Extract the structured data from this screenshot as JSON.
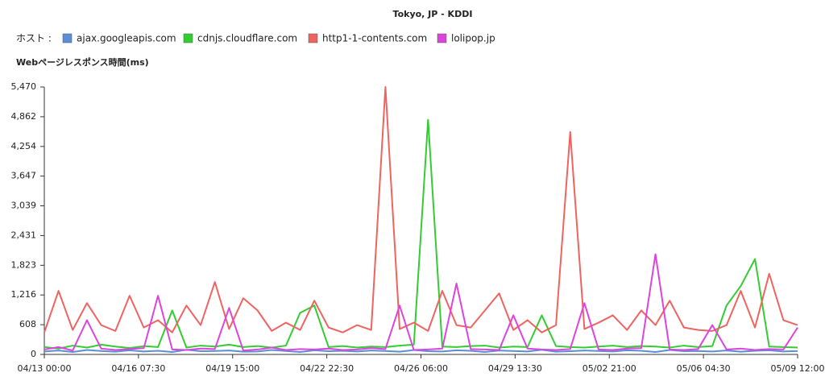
{
  "chart_data": {
    "type": "line",
    "title": "Tokyo, JP - KDDI",
    "legend_title": "ホスト :",
    "ylabel": "Webページレスポンス時間(ms)",
    "grid": false,
    "ylim": [
      0,
      5470
    ],
    "yticks": [
      0,
      608,
      {
        "value": 1216,
        "label": "1,216"
      },
      {
        "value": 1823,
        "label": "1,823"
      },
      {
        "value": 2431,
        "label": "2,431"
      },
      {
        "value": 3039,
        "label": "3,039"
      },
      {
        "value": 3647,
        "label": "3,647"
      },
      {
        "value": 4254,
        "label": "4,254"
      },
      {
        "value": 4862,
        "label": "4,862"
      },
      {
        "value": 5470,
        "label": "5,470"
      }
    ],
    "xlim": [
      "04/13 00:00",
      "05/09 12:00"
    ],
    "xticks": [
      "04/13 00:00",
      "04/16 07:30",
      "04/19 15:00",
      "04/22 22:30",
      "04/26 06:00",
      "04/29 13:30",
      "05/02 21:00",
      "05/06 04:30",
      "05/09 12:00"
    ],
    "x": [
      "04/13 00:00",
      "04/13 12:00",
      "04/14 00:00",
      "04/14 12:00",
      "04/15 00:00",
      "04/15 12:00",
      "04/16 00:00",
      "04/16 12:00",
      "04/17 00:00",
      "04/17 12:00",
      "04/18 00:00",
      "04/18 12:00",
      "04/19 00:00",
      "04/19 12:00",
      "04/20 00:00",
      "04/20 12:00",
      "04/21 00:00",
      "04/21 12:00",
      "04/22 00:00",
      "04/22 12:00",
      "04/23 00:00",
      "04/23 12:00",
      "04/24 00:00",
      "04/24 12:00",
      "04/25 00:00",
      "04/25 12:00",
      "04/26 00:00",
      "04/26 12:00",
      "04/27 00:00",
      "04/27 12:00",
      "04/28 00:00",
      "04/28 12:00",
      "04/29 00:00",
      "04/29 12:00",
      "04/30 00:00",
      "04/30 12:00",
      "05/01 00:00",
      "05/01 12:00",
      "05/02 00:00",
      "05/02 12:00",
      "05/03 00:00",
      "05/03 12:00",
      "05/04 00:00",
      "05/04 12:00",
      "05/05 00:00",
      "05/05 12:00",
      "05/06 00:00",
      "05/06 12:00",
      "05/07 00:00",
      "05/07 12:00",
      "05/08 00:00",
      "05/08 12:00",
      "05/09 00:00",
      "05/09 12:00"
    ],
    "series": [
      {
        "name": "ajax.googleapis.com",
        "color": "#5b8ed6",
        "values": [
          60,
          80,
          50,
          90,
          70,
          55,
          85,
          60,
          75,
          50,
          95,
          65,
          70,
          80,
          55,
          60,
          90,
          70,
          50,
          85,
          65,
          75,
          60,
          80,
          70,
          55,
          90,
          65,
          60,
          85,
          75,
          50,
          80,
          70,
          60,
          95,
          55,
          65,
          80,
          70,
          60,
          85,
          75,
          50,
          90,
          65,
          70,
          60,
          80,
          55,
          75,
          85,
          60,
          70
        ]
      },
      {
        "name": "cdnjs.cloudflare.com",
        "color": "#33cc33",
        "values": [
          150,
          120,
          180,
          140,
          200,
          160,
          130,
          170,
          150,
          900,
          140,
          180,
          160,
          200,
          150,
          170,
          140,
          180,
          850,
          1000,
          150,
          170,
          140,
          160,
          150,
          180,
          200,
          4800,
          160,
          150,
          170,
          180,
          140,
          160,
          150,
          800,
          170,
          150,
          140,
          160,
          180,
          150,
          170,
          160,
          140,
          180,
          150,
          170,
          1000,
          1400,
          1950,
          160,
          150,
          140
        ]
      },
      {
        "name": "http1-1-contents.com",
        "color": "#ee6461",
        "values": [
          450,
          1300,
          500,
          1050,
          600,
          480,
          1200,
          550,
          700,
          450,
          1000,
          600,
          1480,
          520,
          1150,
          900,
          480,
          650,
          500,
          1100,
          550,
          450,
          600,
          500,
          5470,
          520,
          650,
          480,
          1300,
          600,
          550,
          900,
          1250,
          500,
          700,
          450,
          600,
          4550,
          520,
          650,
          800,
          500,
          900,
          600,
          1100,
          550,
          500,
          480,
          600,
          1300,
          550,
          1650,
          700,
          600
        ]
      },
      {
        "name": "lolipop.jp",
        "color": "#dd44dd",
        "values": [
          100,
          150,
          80,
          700,
          120,
          90,
          110,
          130,
          1200,
          100,
          90,
          120,
          110,
          950,
          80,
          100,
          140,
          90,
          110,
          100,
          120,
          90,
          100,
          130,
          110,
          1000,
          90,
          100,
          120,
          1450,
          110,
          100,
          90,
          800,
          120,
          100,
          90,
          110,
          1050,
          100,
          90,
          120,
          130,
          2050,
          100,
          90,
          110,
          600,
          100,
          120,
          90,
          110,
          100,
          550
        ]
      }
    ]
  }
}
